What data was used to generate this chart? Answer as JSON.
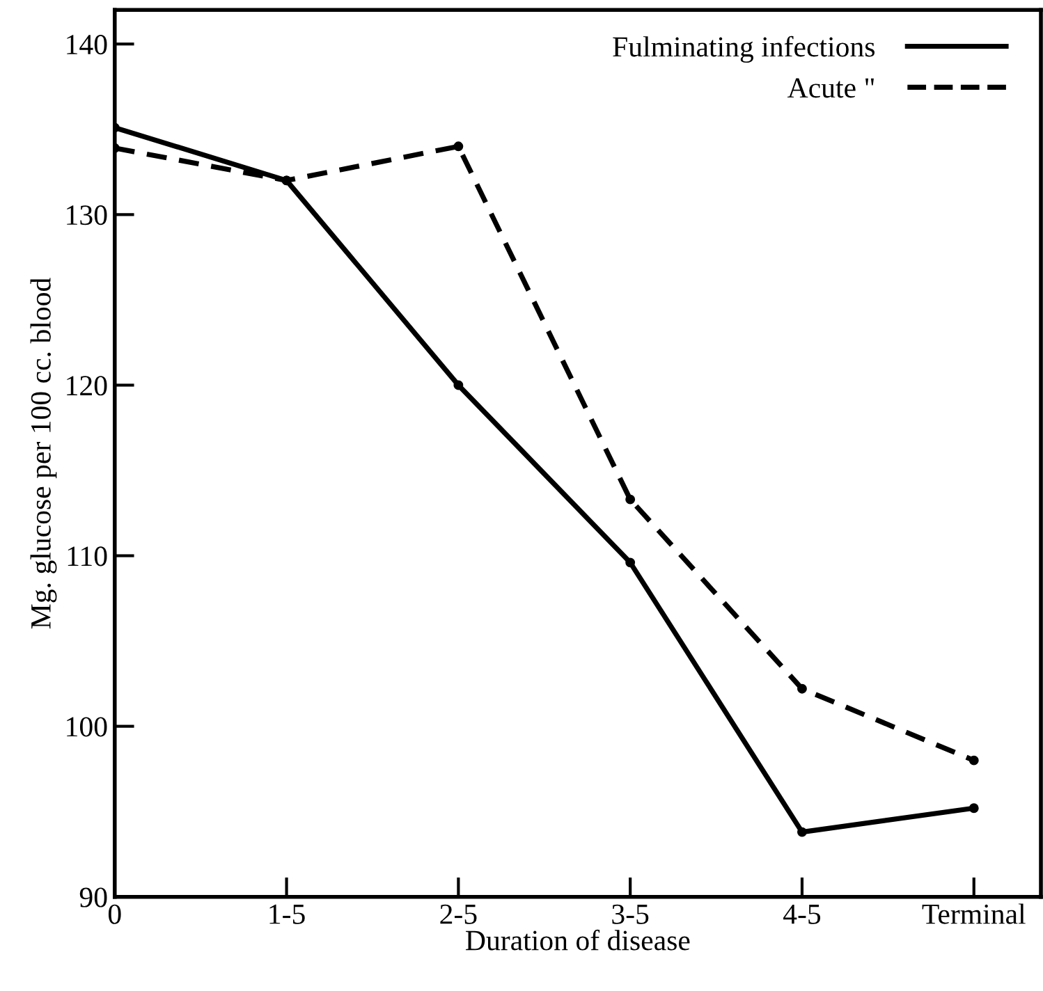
{
  "chart_data": {
    "type": "line",
    "xlabel": "Duration of disease",
    "ylabel": "Mg. glucose per 100 cc. blood",
    "categories": [
      "0",
      "1-5",
      "2-5",
      "3-5",
      "4-5",
      "Terminal"
    ],
    "series": [
      {
        "name": "Fulminating infections",
        "color": "#000000",
        "line_style": "solid",
        "values": [
          135.1,
          132,
          120,
          109.6,
          93.8,
          95.2
        ]
      },
      {
        "name": "Acute \"",
        "color": "#000000",
        "line_style": "dashed",
        "values": [
          133.9,
          132,
          134,
          113.3,
          102.2,
          98
        ]
      }
    ],
    "ylim": [
      90,
      142
    ],
    "yticks": [
      90,
      100,
      110,
      120,
      130,
      140
    ],
    "marker": "circle",
    "legend": "top right",
    "grid": false
  }
}
